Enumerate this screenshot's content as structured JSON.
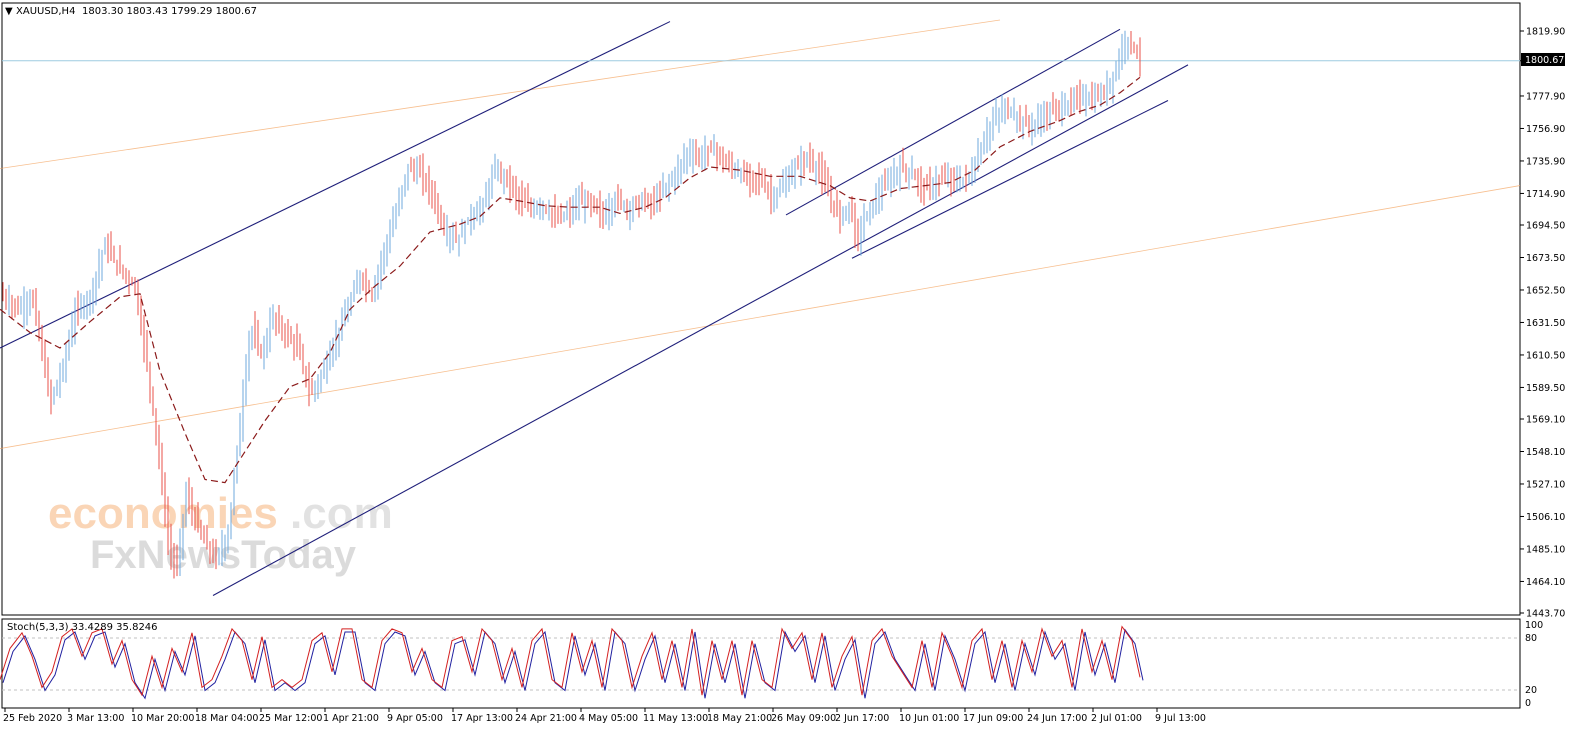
{
  "header": {
    "symbol": "XAUUSD,H4",
    "ohlc": "1803.30 1803.43 1799.29 1800.67"
  },
  "current_price": "1800.67",
  "indicator": {
    "label": "Stoch(5,3,3) 33.4289 35.8246",
    "levels": [
      "100",
      "80",
      "20",
      "0"
    ]
  },
  "watermark": {
    "brand1": "economies",
    "brand1_suffix": ".com",
    "brand2": "FxNewsToday"
  },
  "colors": {
    "bull": "#6fa8dc",
    "bear": "#e8504a",
    "ma": "#8b1a1a",
    "channel": "#1f1f7a",
    "fib": "#f4a460",
    "stoch_main": "#d42020",
    "stoch_signal": "#2020a0",
    "price_line": "#9ecbe0"
  },
  "chart_data": {
    "type": "candlestick",
    "title": "XAUUSD,H4",
    "y_ticks": [
      "1819.90",
      "1800.67",
      "1777.90",
      "1756.90",
      "1735.90",
      "1714.90",
      "1694.50",
      "1673.50",
      "1652.50",
      "1631.50",
      "1610.50",
      "1589.50",
      "1569.10",
      "1548.10",
      "1527.10",
      "1506.10",
      "1485.10",
      "1464.10",
      "1443.70"
    ],
    "ylim": [
      1443.7,
      1827
    ],
    "x_ticks": [
      "25 Feb 2020",
      "3 Mar 13:00",
      "10 Mar 20:00",
      "18 Mar 04:00",
      "25 Mar 12:00",
      "1 Apr 21:00",
      "9 Apr 05:00",
      "17 Apr 13:00",
      "24 Apr 21:00",
      "4 May 05:00",
      "11 May 13:00",
      "18 May 21:00",
      "26 May 09:00",
      "2 Jun 17:00",
      "10 Jun 01:00",
      "17 Jun 09:00",
      "24 Jun 17:00",
      "2 Jul 01:00",
      "9 Jul 13:00"
    ],
    "price_path": [
      [
        0,
        1650
      ],
      [
        18,
        1640
      ],
      [
        32,
        1648
      ],
      [
        42,
        1612
      ],
      [
        50,
        1580
      ],
      [
        62,
        1600
      ],
      [
        75,
        1638
      ],
      [
        90,
        1648
      ],
      [
        105,
        1682
      ],
      [
        118,
        1668
      ],
      [
        135,
        1655
      ],
      [
        148,
        1600
      ],
      [
        158,
        1550
      ],
      [
        168,
        1490
      ],
      [
        176,
        1470
      ],
      [
        186,
        1520
      ],
      [
        196,
        1502
      ],
      [
        206,
        1488
      ],
      [
        216,
        1478
      ],
      [
        228,
        1495
      ],
      [
        238,
        1555
      ],
      [
        250,
        1628
      ],
      [
        262,
        1610
      ],
      [
        272,
        1635
      ],
      [
        285,
        1625
      ],
      [
        298,
        1615
      ],
      [
        310,
        1585
      ],
      [
        322,
        1598
      ],
      [
        335,
        1620
      ],
      [
        348,
        1640
      ],
      [
        360,
        1662
      ],
      [
        372,
        1650
      ],
      [
        385,
        1680
      ],
      [
        395,
        1700
      ],
      [
        408,
        1732
      ],
      [
        420,
        1728
      ],
      [
        432,
        1715
      ],
      [
        445,
        1690
      ],
      [
        458,
        1685
      ],
      [
        470,
        1700
      ],
      [
        482,
        1705
      ],
      [
        494,
        1730
      ],
      [
        506,
        1725
      ],
      [
        518,
        1712
      ],
      [
        530,
        1705
      ],
      [
        542,
        1708
      ],
      [
        556,
        1698
      ],
      [
        568,
        1702
      ],
      [
        580,
        1710
      ],
      [
        592,
        1708
      ],
      [
        604,
        1700
      ],
      [
        616,
        1712
      ],
      [
        628,
        1705
      ],
      [
        640,
        1710
      ],
      [
        652,
        1708
      ],
      [
        664,
        1718
      ],
      [
        676,
        1728
      ],
      [
        688,
        1742
      ],
      [
        700,
        1738
      ],
      [
        712,
        1745
      ],
      [
        724,
        1735
      ],
      [
        736,
        1730
      ],
      [
        748,
        1724
      ],
      [
        760,
        1725
      ],
      [
        772,
        1712
      ],
      [
        784,
        1720
      ],
      [
        796,
        1732
      ],
      [
        808,
        1738
      ],
      [
        820,
        1728
      ],
      [
        830,
        1712
      ],
      [
        840,
        1700
      ],
      [
        850,
        1708
      ],
      [
        856,
        1685
      ],
      [
        866,
        1700
      ],
      [
        876,
        1712
      ],
      [
        888,
        1722
      ],
      [
        900,
        1732
      ],
      [
        912,
        1728
      ],
      [
        924,
        1718
      ],
      [
        936,
        1722
      ],
      [
        948,
        1725
      ],
      [
        960,
        1722
      ],
      [
        972,
        1728
      ],
      [
        984,
        1750
      ],
      [
        996,
        1765
      ],
      [
        1008,
        1770
      ],
      [
        1020,
        1762
      ],
      [
        1032,
        1758
      ],
      [
        1044,
        1765
      ],
      [
        1056,
        1770
      ],
      [
        1068,
        1772
      ],
      [
        1080,
        1778
      ],
      [
        1092,
        1775
      ],
      [
        1104,
        1780
      ],
      [
        1116,
        1795
      ],
      [
        1124,
        1815
      ],
      [
        1132,
        1812
      ],
      [
        1140,
        1802
      ]
    ],
    "ma_path": [
      [
        0,
        1640
      ],
      [
        30,
        1625
      ],
      [
        60,
        1615
      ],
      [
        90,
        1632
      ],
      [
        120,
        1648
      ],
      [
        140,
        1650
      ],
      [
        160,
        1600
      ],
      [
        185,
        1560
      ],
      [
        205,
        1530
      ],
      [
        225,
        1528
      ],
      [
        245,
        1548
      ],
      [
        265,
        1568
      ],
      [
        290,
        1590
      ],
      [
        310,
        1595
      ],
      [
        330,
        1612
      ],
      [
        350,
        1640
      ],
      [
        375,
        1655
      ],
      [
        400,
        1668
      ],
      [
        430,
        1690
      ],
      [
        460,
        1695
      ],
      [
        480,
        1700
      ],
      [
        500,
        1712
      ],
      [
        520,
        1710
      ],
      [
        545,
        1707
      ],
      [
        570,
        1706
      ],
      [
        600,
        1706
      ],
      [
        620,
        1702
      ],
      [
        645,
        1706
      ],
      [
        665,
        1712
      ],
      [
        690,
        1725
      ],
      [
        710,
        1732
      ],
      [
        740,
        1730
      ],
      [
        770,
        1726
      ],
      [
        800,
        1726
      ],
      [
        830,
        1720
      ],
      [
        850,
        1712
      ],
      [
        870,
        1710
      ],
      [
        900,
        1718
      ],
      [
        925,
        1720
      ],
      [
        950,
        1722
      ],
      [
        975,
        1730
      ],
      [
        1000,
        1745
      ],
      [
        1030,
        1755
      ],
      [
        1060,
        1762
      ],
      [
        1080,
        1768
      ],
      [
        1100,
        1772
      ],
      [
        1120,
        1780
      ],
      [
        1140,
        1790
      ]
    ],
    "stoch_path": [
      [
        0,
        30
      ],
      [
        10,
        70
      ],
      [
        22,
        90
      ],
      [
        32,
        60
      ],
      [
        42,
        20
      ],
      [
        52,
        40
      ],
      [
        62,
        85
      ],
      [
        72,
        95
      ],
      [
        82,
        60
      ],
      [
        92,
        90
      ],
      [
        102,
        95
      ],
      [
        112,
        50
      ],
      [
        122,
        80
      ],
      [
        132,
        30
      ],
      [
        142,
        10
      ],
      [
        152,
        60
      ],
      [
        162,
        20
      ],
      [
        172,
        70
      ],
      [
        182,
        40
      ],
      [
        192,
        90
      ],
      [
        202,
        20
      ],
      [
        212,
        30
      ],
      [
        222,
        60
      ],
      [
        232,
        95
      ],
      [
        242,
        80
      ],
      [
        252,
        30
      ],
      [
        262,
        85
      ],
      [
        272,
        20
      ],
      [
        282,
        30
      ],
      [
        292,
        20
      ],
      [
        302,
        30
      ],
      [
        312,
        80
      ],
      [
        322,
        90
      ],
      [
        332,
        40
      ],
      [
        342,
        95
      ],
      [
        352,
        95
      ],
      [
        362,
        30
      ],
      [
        372,
        20
      ],
      [
        382,
        80
      ],
      [
        392,
        95
      ],
      [
        402,
        90
      ],
      [
        412,
        40
      ],
      [
        422,
        70
      ],
      [
        432,
        30
      ],
      [
        442,
        20
      ],
      [
        452,
        80
      ],
      [
        462,
        85
      ],
      [
        472,
        40
      ],
      [
        482,
        95
      ],
      [
        492,
        80
      ],
      [
        502,
        30
      ],
      [
        512,
        70
      ],
      [
        522,
        20
      ],
      [
        532,
        80
      ],
      [
        542,
        95
      ],
      [
        552,
        30
      ],
      [
        562,
        20
      ],
      [
        572,
        90
      ],
      [
        582,
        40
      ],
      [
        592,
        80
      ],
      [
        602,
        20
      ],
      [
        612,
        95
      ],
      [
        622,
        80
      ],
      [
        632,
        20
      ],
      [
        642,
        60
      ],
      [
        652,
        90
      ],
      [
        662,
        30
      ],
      [
        672,
        80
      ],
      [
        682,
        20
      ],
      [
        692,
        95
      ],
      [
        702,
        10
      ],
      [
        712,
        80
      ],
      [
        722,
        30
      ],
      [
        732,
        80
      ],
      [
        742,
        10
      ],
      [
        752,
        80
      ],
      [
        762,
        30
      ],
      [
        772,
        20
      ],
      [
        782,
        95
      ],
      [
        792,
        70
      ],
      [
        802,
        90
      ],
      [
        812,
        30
      ],
      [
        822,
        90
      ],
      [
        832,
        20
      ],
      [
        842,
        60
      ],
      [
        852,
        85
      ],
      [
        862,
        10
      ],
      [
        872,
        80
      ],
      [
        882,
        95
      ],
      [
        892,
        60
      ],
      [
        902,
        40
      ],
      [
        912,
        20
      ],
      [
        922,
        80
      ],
      [
        932,
        20
      ],
      [
        942,
        90
      ],
      [
        952,
        60
      ],
      [
        962,
        20
      ],
      [
        972,
        80
      ],
      [
        982,
        95
      ],
      [
        992,
        30
      ],
      [
        1002,
        80
      ],
      [
        1012,
        20
      ],
      [
        1022,
        80
      ],
      [
        1032,
        40
      ],
      [
        1042,
        95
      ],
      [
        1052,
        60
      ],
      [
        1062,
        80
      ],
      [
        1072,
        20
      ],
      [
        1082,
        95
      ],
      [
        1092,
        40
      ],
      [
        1102,
        80
      ],
      [
        1112,
        30
      ],
      [
        1122,
        98
      ],
      [
        1132,
        80
      ],
      [
        1140,
        33
      ]
    ],
    "channel_lines": [
      {
        "p1": [
          0,
          1615
        ],
        "p2": [
          670,
          1826
        ]
      },
      {
        "p1": [
          213,
          1455
        ],
        "p2": [
          1188,
          1798
        ]
      },
      {
        "p1": [
          786,
          1701
        ],
        "p2": [
          1120,
          1821
        ]
      },
      {
        "p1": [
          852,
          1673
        ],
        "p2": [
          1168,
          1775
        ]
      }
    ],
    "fib_lines": [
      {
        "p1": [
          0,
          1731
        ],
        "p2": [
          1000,
          1827
        ]
      },
      {
        "p1": [
          0,
          1550
        ],
        "p2": [
          1520,
          1720
        ]
      }
    ]
  }
}
